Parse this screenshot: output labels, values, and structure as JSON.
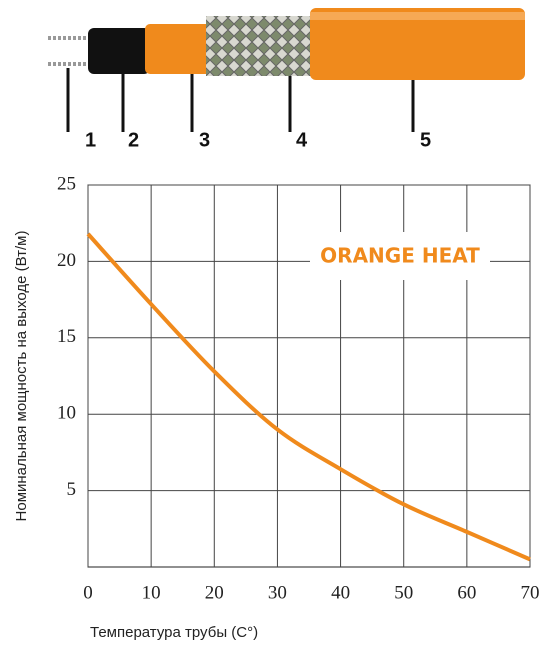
{
  "chart_data": {
    "type": "line",
    "cable_labels": [
      "1",
      "2",
      "3",
      "4",
      "5"
    ],
    "annotation": "ORANGE HEAT",
    "y_label": "Номинальная мощность на выходе (Вт/м)",
    "x_label": "Температура трубы (С°)",
    "x": [
      0,
      10,
      20,
      30,
      40,
      50,
      60,
      70
    ],
    "series": [
      {
        "color": "#f08a1c",
        "values": [
          21.8,
          17.2,
          12.8,
          9.0,
          6.4,
          4.1,
          2.3,
          0.5
        ]
      }
    ],
    "xlim": [
      0,
      70
    ],
    "xticks": [
      0,
      10,
      20,
      30,
      40,
      50,
      60,
      70
    ],
    "ylim": [
      0,
      25
    ],
    "yticks": [
      5,
      10,
      15,
      20,
      25
    ],
    "grid": true
  }
}
